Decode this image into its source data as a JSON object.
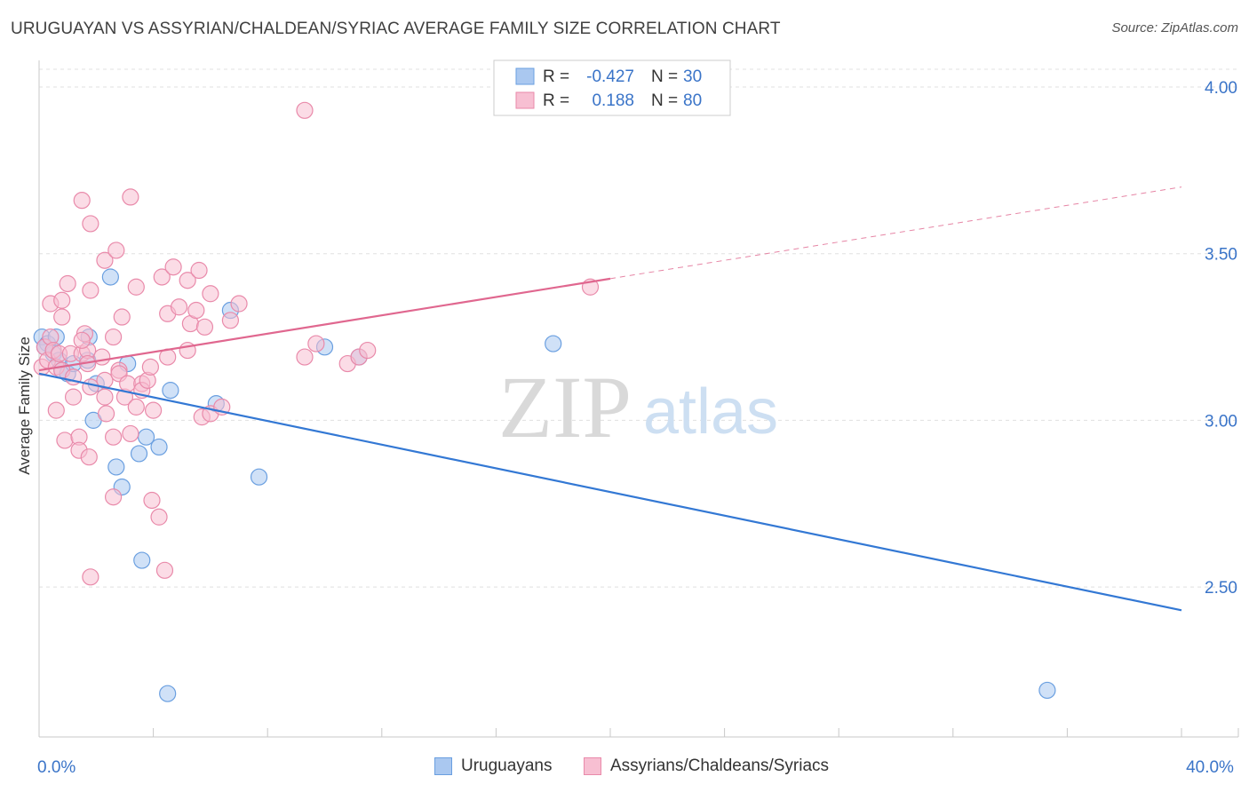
{
  "title": "URUGUAYAN VS ASSYRIAN/CHALDEAN/SYRIAC AVERAGE FAMILY SIZE CORRELATION CHART",
  "source": "Source: ZipAtlas.com",
  "watermark": {
    "zip": "ZIP",
    "atlas": "atlas"
  },
  "colors": {
    "blue_fill": "#aac8f0",
    "blue_stroke": "#6a9fe0",
    "blue_line": "#3378d4",
    "pink_fill": "#f7bfd2",
    "pink_stroke": "#e98aaa",
    "pink_line": "#e0678f",
    "grid": "#e0e0e0",
    "axis_text": "#3a74c8"
  },
  "legend": {
    "rows": [
      {
        "r_label": "R =",
        "r_value": "-0.427",
        "n_label": "N =",
        "n_value": "30",
        "series": "blue"
      },
      {
        "r_label": "R =",
        "r_value": "0.188",
        "n_label": "N =",
        "n_value": "80",
        "series": "pink"
      }
    ]
  },
  "bottom_legend": {
    "items": [
      {
        "label": "Uruguayans",
        "series": "blue"
      },
      {
        "label": "Assyrians/Chaldeans/Syriacs",
        "series": "pink"
      }
    ]
  },
  "chart_data": {
    "type": "scatter",
    "title": "URUGUAYAN VS ASSYRIAN/CHALDEAN/SYRIAC AVERAGE FAMILY SIZE CORRELATION CHART",
    "xlabel": "",
    "ylabel": "Average Family Size",
    "xlim": [
      0,
      40
    ],
    "ylim": [
      2.05,
      4.08
    ],
    "x_tick_labels": [
      {
        "value": 0,
        "label": "0.0%"
      },
      {
        "value": 40,
        "label": "40.0%"
      }
    ],
    "x_minor_ticks": [
      4,
      8,
      12,
      16,
      20,
      24,
      28,
      32,
      36,
      40
    ],
    "y_ticks": [
      {
        "value": 2.5,
        "label": "2.50"
      },
      {
        "value": 3.0,
        "label": "3.00"
      },
      {
        "value": 3.5,
        "label": "3.50"
      },
      {
        "value": 4.0,
        "label": "4.00"
      }
    ],
    "grid": true,
    "legend_position": "top-center",
    "series": [
      {
        "name": "Uruguayans",
        "color": "blue",
        "R": -0.427,
        "N": 30,
        "trend": {
          "x0": 0,
          "y0": 3.14,
          "x1": 40,
          "y1": 2.43,
          "dashed_from": null
        },
        "points": [
          [
            0.1,
            3.25
          ],
          [
            0.3,
            3.23
          ],
          [
            0.5,
            3.2
          ],
          [
            0.6,
            3.25
          ],
          [
            0.7,
            3.18
          ],
          [
            0.8,
            3.15
          ],
          [
            1.0,
            3.14
          ],
          [
            1.2,
            3.17
          ],
          [
            1.7,
            3.18
          ],
          [
            1.75,
            3.25
          ],
          [
            2.0,
            3.11
          ],
          [
            1.9,
            3.0
          ],
          [
            2.5,
            3.43
          ],
          [
            3.1,
            3.17
          ],
          [
            4.6,
            3.09
          ],
          [
            3.5,
            2.9
          ],
          [
            3.6,
            2.58
          ],
          [
            3.75,
            2.95
          ],
          [
            2.7,
            2.86
          ],
          [
            2.9,
            2.8
          ],
          [
            4.2,
            2.92
          ],
          [
            6.2,
            3.05
          ],
          [
            6.7,
            3.33
          ],
          [
            7.7,
            2.83
          ],
          [
            10.0,
            3.22
          ],
          [
            11.2,
            3.19
          ],
          [
            18.0,
            3.23
          ],
          [
            4.5,
            2.18
          ],
          [
            35.3,
            2.19
          ],
          [
            0.2,
            3.22
          ]
        ]
      },
      {
        "name": "Assyrians/Chaldeans/Syriacs",
        "color": "pink",
        "R": 0.188,
        "N": 80,
        "trend": {
          "x0": 0,
          "y0": 3.15,
          "x1": 40,
          "y1": 3.7,
          "dashed_from": 20
        },
        "points": [
          [
            0.1,
            3.16
          ],
          [
            0.2,
            3.22
          ],
          [
            0.3,
            3.18
          ],
          [
            0.4,
            3.25
          ],
          [
            0.5,
            3.21
          ],
          [
            0.6,
            3.16
          ],
          [
            0.7,
            3.2
          ],
          [
            0.8,
            3.15
          ],
          [
            0.4,
            3.35
          ],
          [
            0.6,
            3.03
          ],
          [
            0.8,
            3.31
          ],
          [
            0.8,
            3.36
          ],
          [
            0.9,
            2.94
          ],
          [
            1.0,
            3.41
          ],
          [
            1.1,
            3.2
          ],
          [
            1.2,
            3.13
          ],
          [
            1.2,
            3.07
          ],
          [
            1.4,
            2.95
          ],
          [
            1.4,
            2.91
          ],
          [
            1.5,
            3.2
          ],
          [
            1.6,
            3.26
          ],
          [
            1.7,
            3.21
          ],
          [
            1.8,
            3.1
          ],
          [
            1.5,
            3.24
          ],
          [
            1.5,
            3.66
          ],
          [
            1.7,
            3.17
          ],
          [
            1.75,
            2.89
          ],
          [
            1.8,
            3.39
          ],
          [
            1.8,
            2.53
          ],
          [
            1.8,
            3.59
          ],
          [
            2.2,
            3.19
          ],
          [
            2.3,
            3.12
          ],
          [
            2.35,
            3.02
          ],
          [
            2.3,
            3.07
          ],
          [
            2.3,
            3.48
          ],
          [
            2.6,
            2.95
          ],
          [
            2.6,
            2.77
          ],
          [
            2.6,
            3.25
          ],
          [
            2.7,
            3.51
          ],
          [
            2.8,
            3.15
          ],
          [
            2.8,
            3.14
          ],
          [
            2.9,
            3.31
          ],
          [
            3.0,
            3.07
          ],
          [
            3.1,
            3.11
          ],
          [
            3.2,
            2.96
          ],
          [
            3.2,
            3.67
          ],
          [
            3.4,
            3.4
          ],
          [
            3.4,
            3.04
          ],
          [
            3.6,
            3.11
          ],
          [
            3.6,
            3.09
          ],
          [
            3.8,
            3.12
          ],
          [
            3.9,
            3.16
          ],
          [
            3.95,
            2.76
          ],
          [
            4.0,
            3.03
          ],
          [
            4.2,
            2.71
          ],
          [
            4.3,
            3.43
          ],
          [
            4.4,
            2.55
          ],
          [
            4.5,
            3.32
          ],
          [
            4.5,
            3.19
          ],
          [
            4.7,
            3.46
          ],
          [
            4.9,
            3.34
          ],
          [
            5.2,
            3.42
          ],
          [
            5.2,
            3.21
          ],
          [
            5.3,
            3.29
          ],
          [
            5.5,
            3.33
          ],
          [
            5.6,
            3.45
          ],
          [
            5.7,
            3.01
          ],
          [
            5.8,
            3.28
          ],
          [
            6.0,
            3.02
          ],
          [
            6.0,
            3.38
          ],
          [
            6.4,
            3.04
          ],
          [
            6.7,
            3.3
          ],
          [
            7.0,
            3.35
          ],
          [
            9.3,
            3.93
          ],
          [
            9.3,
            3.19
          ],
          [
            9.7,
            3.23
          ],
          [
            10.8,
            3.17
          ],
          [
            11.2,
            3.19
          ],
          [
            11.5,
            3.21
          ],
          [
            19.3,
            3.4
          ]
        ]
      }
    ]
  }
}
